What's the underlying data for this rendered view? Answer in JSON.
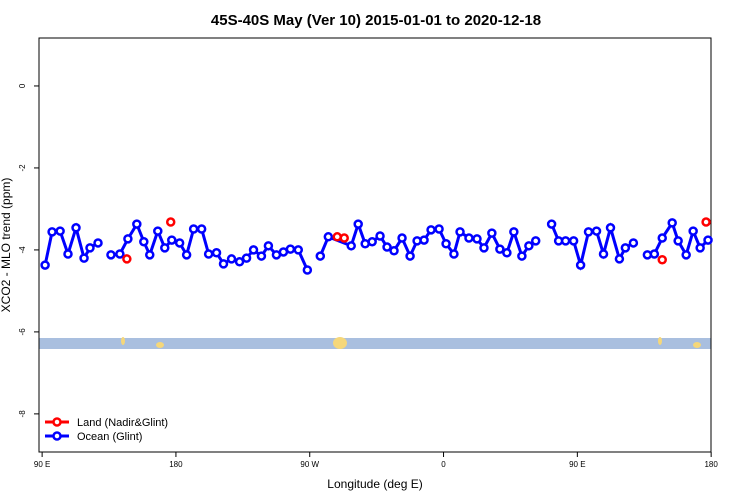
{
  "chart_data": {
    "type": "line",
    "title": "45S-40S May (Ver 10)   2015-01-01 to 2020-12-18",
    "xlabel": "Longitude (deg E)",
    "ylabel": "XCO2 - MLO trend (ppm)",
    "xlim": [
      87.9,
      539.9
    ],
    "ylim": [
      -8.93,
      1.17
    ],
    "xticks": [
      {
        "value": 90,
        "label": "90 E"
      },
      180,
      {
        "value": 270,
        "label": "90 W"
      },
      {
        "value": 360,
        "label": "0"
      },
      {
        "value": 450,
        "label": "90 E"
      },
      {
        "value": 540,
        "label": "180"
      }
    ],
    "yticks": [
      0,
      -2,
      -4,
      -6,
      -8
    ],
    "legend": "bottom-left",
    "series": [
      {
        "name": "Land (Nadir&Glint)",
        "color": "#ff0000",
        "x": [
          147.0,
          null,
          176.5,
          null,
          288.5,
          293.2,
          null,
          507.1,
          null,
          536.6
        ],
        "values": [
          -4.22,
          null,
          -3.32,
          null,
          -3.68,
          -3.71,
          null,
          -4.24,
          null,
          -3.32
        ]
      },
      {
        "name": "Ocean (Glint)",
        "color": "#0000ff",
        "x": [
          92.0,
          96.7,
          102.1,
          107.4,
          112.8,
          118.2,
          122.2,
          127.6,
          null,
          136.3,
          142.3,
          147.7,
          153.7,
          158.4,
          162.4,
          167.8,
          172.5,
          177.2,
          182.5,
          187.2,
          191.9,
          197.3,
          202.0,
          207.3,
          212.0,
          217.4,
          222.8,
          227.5,
          232.2,
          237.5,
          242.2,
          247.6,
          252.3,
          257.0,
          262.3,
          268.4,
          null,
          277.1,
          282.5,
          297.9,
          302.6,
          307.3,
          312.0,
          317.3,
          322.0,
          326.7,
          332.1,
          337.5,
          342.2,
          346.9,
          351.6,
          357.0,
          361.7,
          367.0,
          371.1,
          377.1,
          382.5,
          387.2,
          392.5,
          397.9,
          402.6,
          407.3,
          412.7,
          417.4,
          422.0,
          null,
          432.7,
          437.4,
          442.1,
          447.5,
          452.2,
          457.5,
          462.9,
          467.6,
          472.3,
          478.3,
          482.3,
          487.7,
          null,
          497.1,
          501.8,
          507.1,
          513.8,
          517.8,
          523.2,
          527.9,
          532.6,
          537.9
        ],
        "values": [
          -4.37,
          -3.56,
          -3.54,
          -4.1,
          -3.46,
          -4.2,
          -3.95,
          -3.83,
          null,
          -4.12,
          -4.1,
          -3.73,
          -3.37,
          -3.8,
          -4.12,
          -3.54,
          -3.95,
          -3.76,
          -3.83,
          -4.12,
          -3.49,
          -3.49,
          -4.1,
          -4.07,
          -4.34,
          -4.22,
          -4.29,
          -4.2,
          -4.0,
          -4.15,
          -3.9,
          -4.12,
          -4.05,
          -3.98,
          -4.0,
          -4.49,
          null,
          -4.15,
          -3.68,
          -3.9,
          -3.37,
          -3.85,
          -3.8,
          -3.66,
          -3.93,
          -4.02,
          -3.71,
          -4.15,
          -3.78,
          -3.76,
          -3.51,
          -3.49,
          -3.85,
          -4.1,
          -3.56,
          -3.71,
          -3.73,
          -3.95,
          -3.59,
          -3.98,
          -4.07,
          -3.56,
          -4.15,
          -3.9,
          -3.78,
          null,
          -3.37,
          -3.78,
          -3.78,
          -3.78,
          -4.37,
          -3.56,
          -3.54,
          -4.1,
          -3.46,
          -4.22,
          -3.95,
          -3.83,
          null,
          -4.12,
          -4.1,
          -3.71,
          -3.34,
          -3.78,
          -4.12,
          -3.54,
          -3.95,
          -3.76
        ]
      }
    ]
  }
}
